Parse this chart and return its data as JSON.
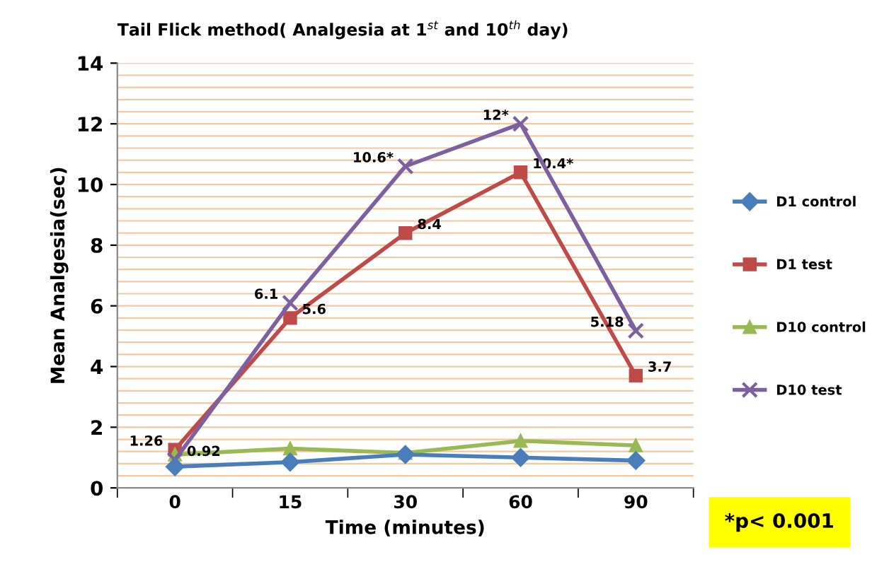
{
  "chart_data": {
    "type": "line",
    "title": "Tail Flick method( Analgesia at 1$^{st}$ and 10$^{th}$ day)",
    "xlabel": "Time (minutes)",
    "ylabel": "Mean Analgesia(sec)",
    "categories": [
      "0",
      "15",
      "30",
      "60",
      "90"
    ],
    "series": [
      {
        "name": "D1 control",
        "color": "#4a7ebb",
        "marker": "diamond",
        "values": [
          0.7,
          0.85,
          1.1,
          1.0,
          0.9
        ]
      },
      {
        "name": "D1 test",
        "color": "#be4b48",
        "marker": "square",
        "values": [
          1.26,
          5.6,
          8.4,
          10.4,
          3.7
        ],
        "value_labels": [
          "1.26",
          "5.6",
          "8.4",
          "10.4*",
          "3.7"
        ]
      },
      {
        "name": "D10 control",
        "color": "#98b954",
        "marker": "triangle",
        "values": [
          1.1,
          1.3,
          1.15,
          1.55,
          1.4
        ]
      },
      {
        "name": "D10 test",
        "color": "#7d60a0",
        "marker": "cross",
        "values": [
          0.92,
          6.1,
          10.6,
          12,
          5.18
        ],
        "value_labels": [
          "0.92",
          "6.1",
          "10.6*",
          "12*",
          "5.18"
        ]
      }
    ],
    "ylim": [
      0,
      14
    ],
    "yticks": [
      0,
      {
        "value": 0.4,
        "label": null
      },
      {
        "value": 0.8,
        "label": null
      },
      {
        "value": 1.2,
        "label": null
      },
      {
        "value": 1.6,
        "label": null
      },
      2,
      {
        "value": 2.4,
        "label": null
      },
      {
        "value": 2.8,
        "label": null
      },
      {
        "value": 3.2,
        "label": null
      },
      {
        "value": 3.6,
        "label": null
      },
      4,
      {
        "value": 4.4,
        "label": null
      },
      {
        "value": 4.8,
        "label": null
      },
      {
        "value": 5.2,
        "label": null
      },
      {
        "value": 5.6,
        "label": null
      },
      6,
      {
        "value": 6.4,
        "label": null
      },
      {
        "value": 6.8,
        "label": null
      },
      {
        "value": 7.2,
        "label": null
      },
      {
        "value": 7.6,
        "label": null
      },
      8,
      {
        "value": 8.4,
        "label": null
      },
      {
        "value": 8.8,
        "label": null
      },
      {
        "value": 9.2,
        "label": null
      },
      {
        "value": 9.6,
        "label": null
      },
      10,
      {
        "value": 10.4,
        "label": null
      },
      {
        "value": 10.8,
        "label": null
      },
      {
        "value": 11.2,
        "label": null
      },
      {
        "value": 11.6,
        "label": null
      },
      12,
      {
        "value": 12.4,
        "label": null
      },
      {
        "value": 12.8,
        "label": null
      },
      {
        "value": 13.2,
        "label": null
      },
      {
        "value": 13.6,
        "label": null
      },
      14
    ],
    "grid": "y",
    "legend": "right",
    "line_style": "solid",
    "annotations": [
      "*p< 0.001"
    ]
  }
}
